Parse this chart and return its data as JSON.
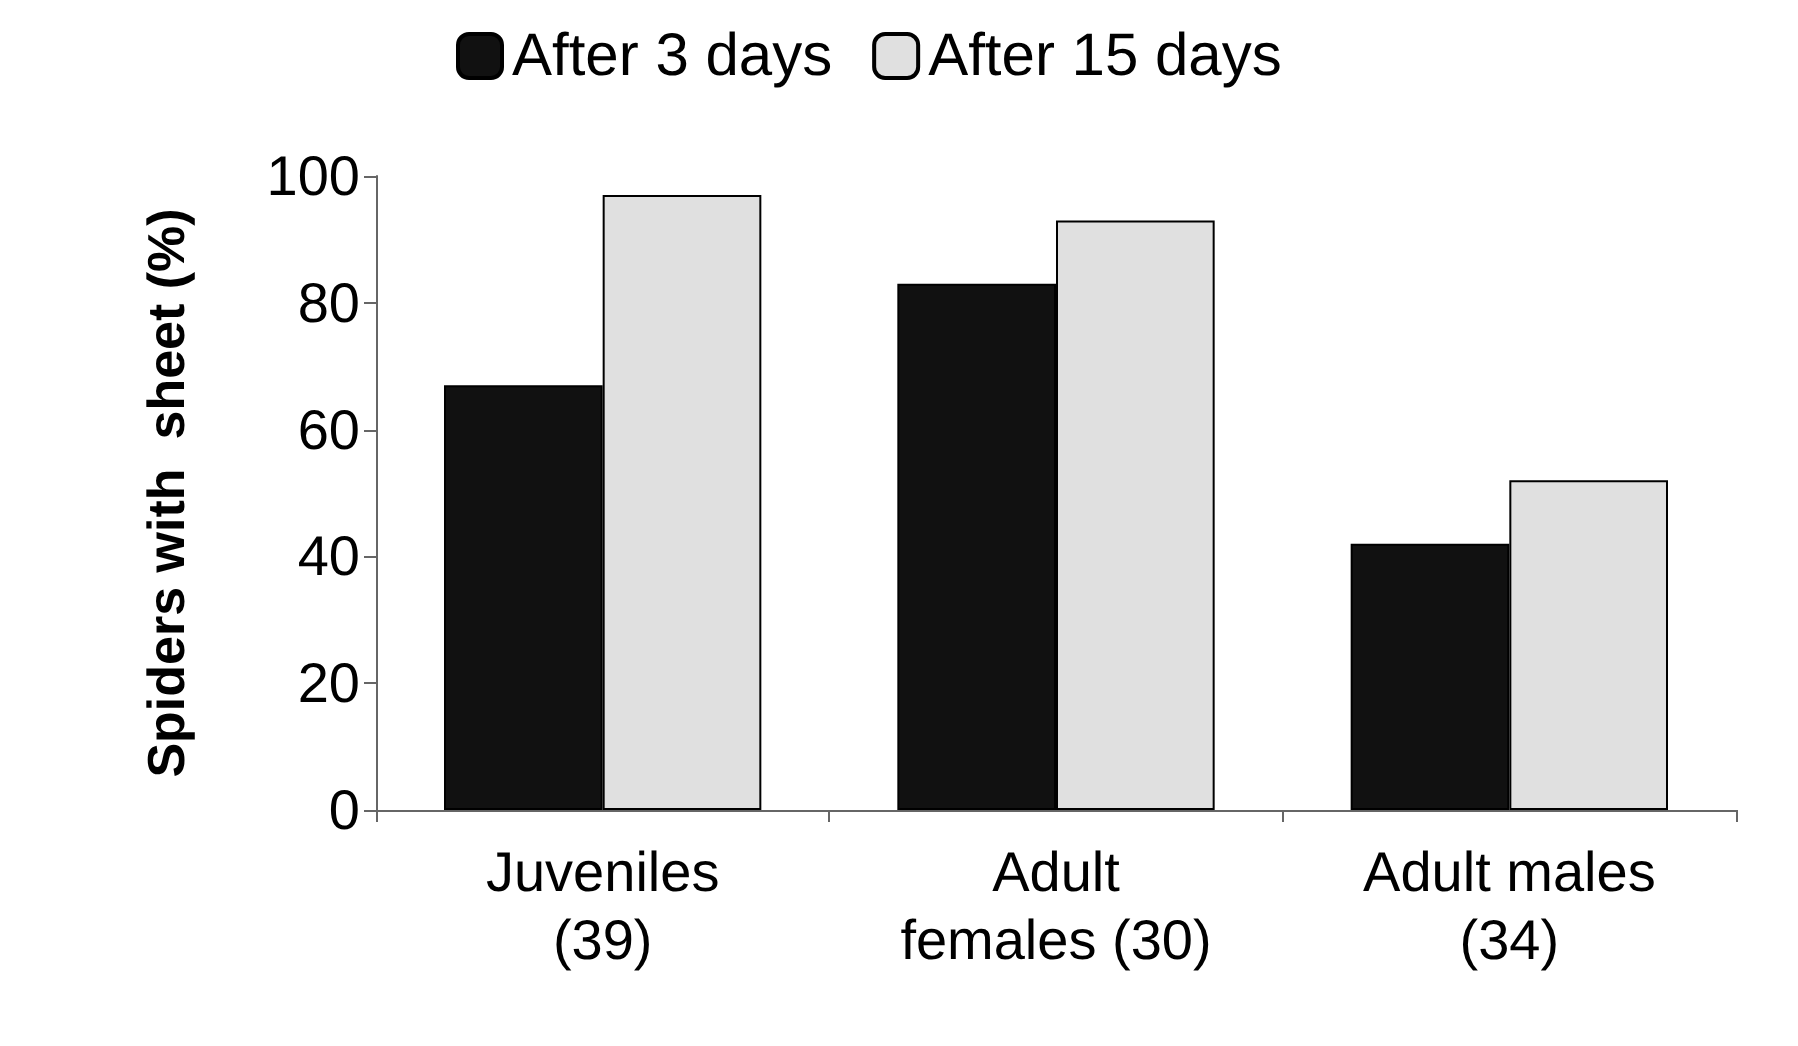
{
  "chart_data": {
    "type": "bar",
    "ylabel": "Spiders with  sheet (%)",
    "categories": [
      "Juveniles\n(39)",
      "Adult\nfemales (30)",
      "Adult males\n(34)"
    ],
    "series": [
      {
        "name": "After 3 days",
        "color": "#111111",
        "values": [
          67,
          83,
          42
        ]
      },
      {
        "name": "After 15 days",
        "color": "#e0e0e0",
        "values": [
          97,
          93,
          52
        ]
      }
    ],
    "ylim": [
      0,
      100
    ],
    "yticks": [
      0,
      20,
      40,
      60,
      80,
      100
    ],
    "grid": false,
    "legend": "top"
  }
}
